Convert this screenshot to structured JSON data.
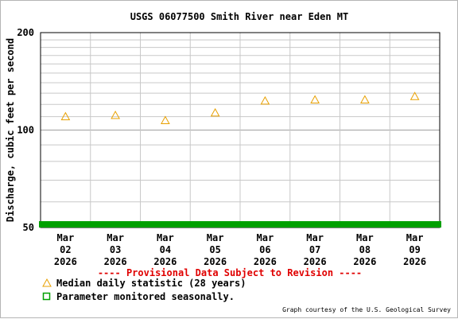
{
  "chart_data": {
    "type": "scatter",
    "title": "USGS 06077500 Smith River near Eden MT",
    "ylabel": "Discharge, cubic feet per second",
    "yscale": "log",
    "ylim": [
      50,
      200
    ],
    "y_tick_labels": [
      "200",
      "100",
      "50"
    ],
    "categories": [
      "Mar\n02\n2026",
      "Mar\n03\n2026",
      "Mar\n04\n2026",
      "Mar\n05\n2026",
      "Mar\n06\n2026",
      "Mar\n07\n2026",
      "Mar\n08\n2026",
      "Mar\n09\n2026"
    ],
    "series": [
      {
        "name": "Median daily statistic (28 years)",
        "marker": "triangle",
        "color": "#e8a000",
        "values": [
          110,
          111,
          107,
          113,
          123,
          124,
          124,
          127
        ]
      }
    ],
    "seasonal_bar": {
      "color": "#00a000",
      "name": "Parameter monitored seasonally."
    },
    "grid": true
  },
  "provisional_text": "---- Provisional Data Subject to Revision ----",
  "legend": {
    "median_label": "Median daily statistic (28 years)",
    "seasonal_label": "Parameter monitored seasonally."
  },
  "courtesy": "Graph courtesy of the U.S. Geological Survey"
}
